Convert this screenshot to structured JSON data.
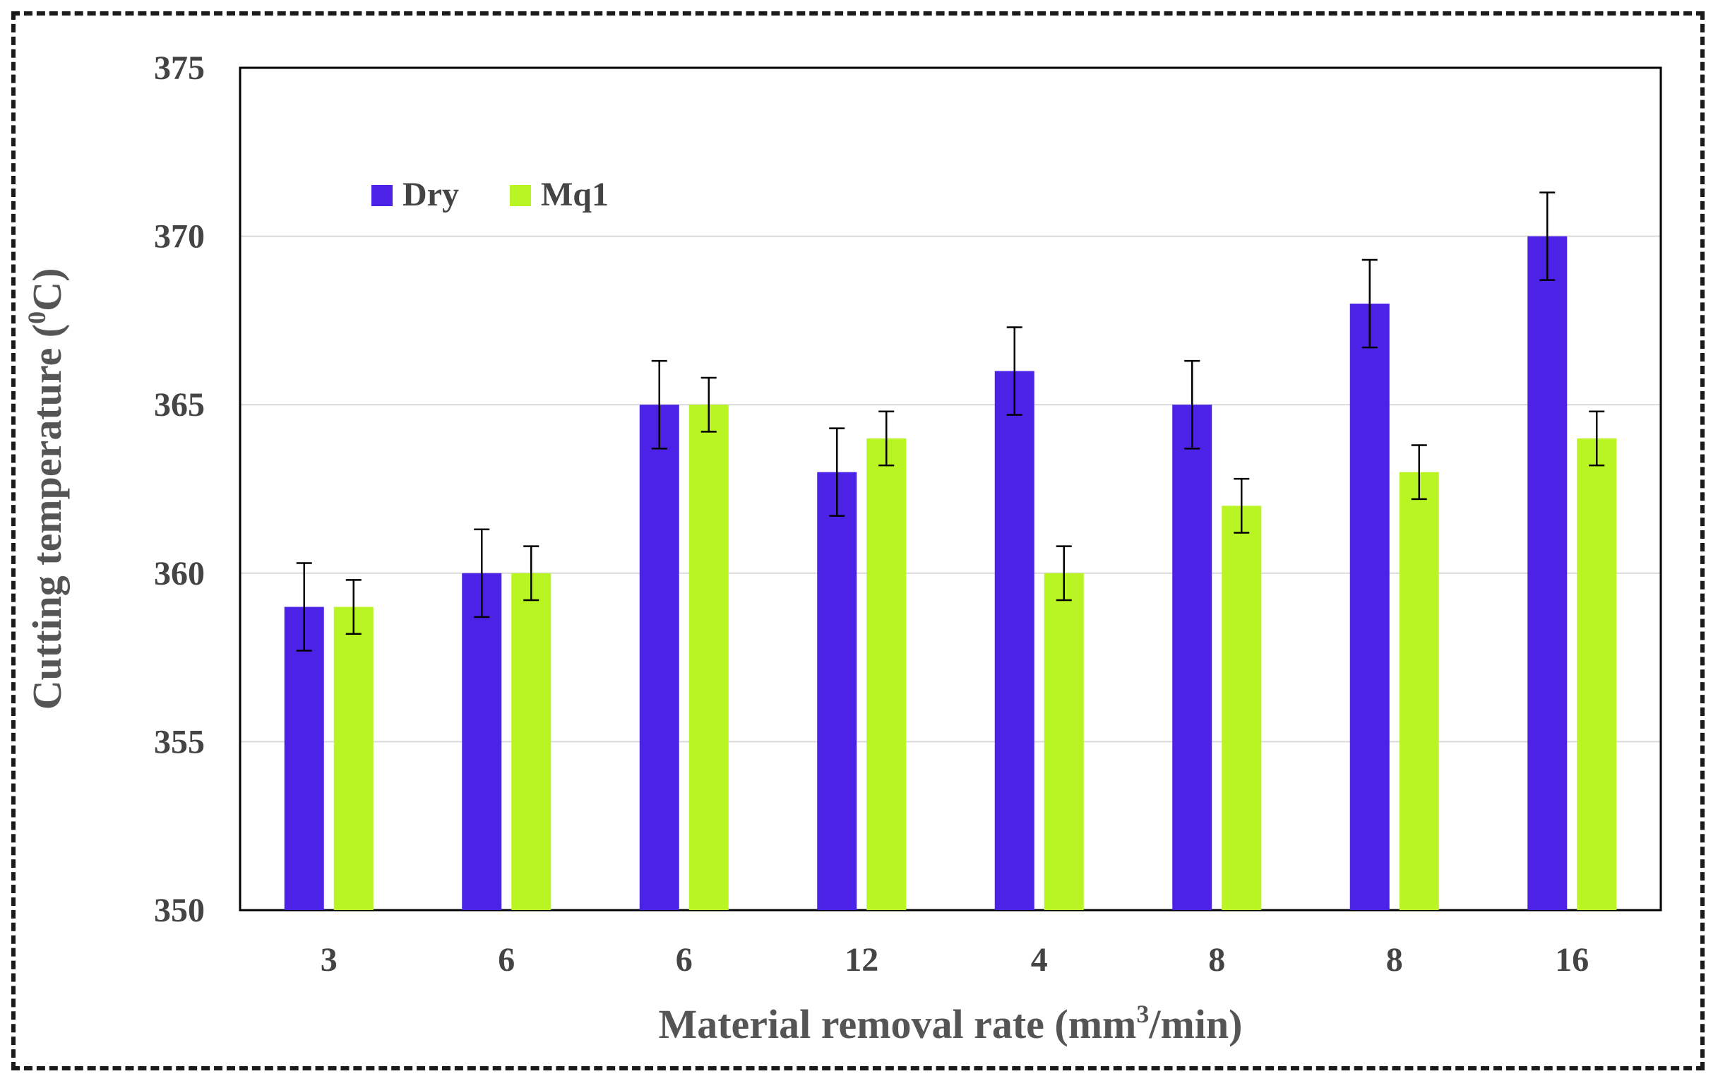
{
  "chart_data": {
    "type": "bar",
    "title": "",
    "xlabel": "Material removal rate (mm",
    "xlabel_sup": "3",
    "xlabel_tail": "/min)",
    "ylabel": "Cutting temperature (",
    "ylabel_sup": "0",
    "ylabel_tail": "C)",
    "ylim": [
      350,
      375
    ],
    "yticks": [
      350,
      355,
      360,
      365,
      370,
      375
    ],
    "grid": true,
    "legend_position": "top-left",
    "categories": [
      "3",
      "6",
      "6",
      "12",
      "4",
      "8",
      "8",
      "16"
    ],
    "series": [
      {
        "name": "Dry",
        "color": "#4b22e6",
        "values": [
          359,
          360,
          365,
          363,
          366,
          365,
          368,
          370
        ],
        "errors": [
          1.3,
          1.3,
          1.3,
          1.3,
          1.3,
          1.3,
          1.3,
          1.3
        ]
      },
      {
        "name": "Mq1",
        "color": "#b9f522",
        "values": [
          359,
          360,
          365,
          364,
          360,
          362,
          363,
          364
        ],
        "errors": [
          0.8,
          0.8,
          0.8,
          0.8,
          0.8,
          0.8,
          0.8,
          0.8
        ]
      }
    ]
  }
}
